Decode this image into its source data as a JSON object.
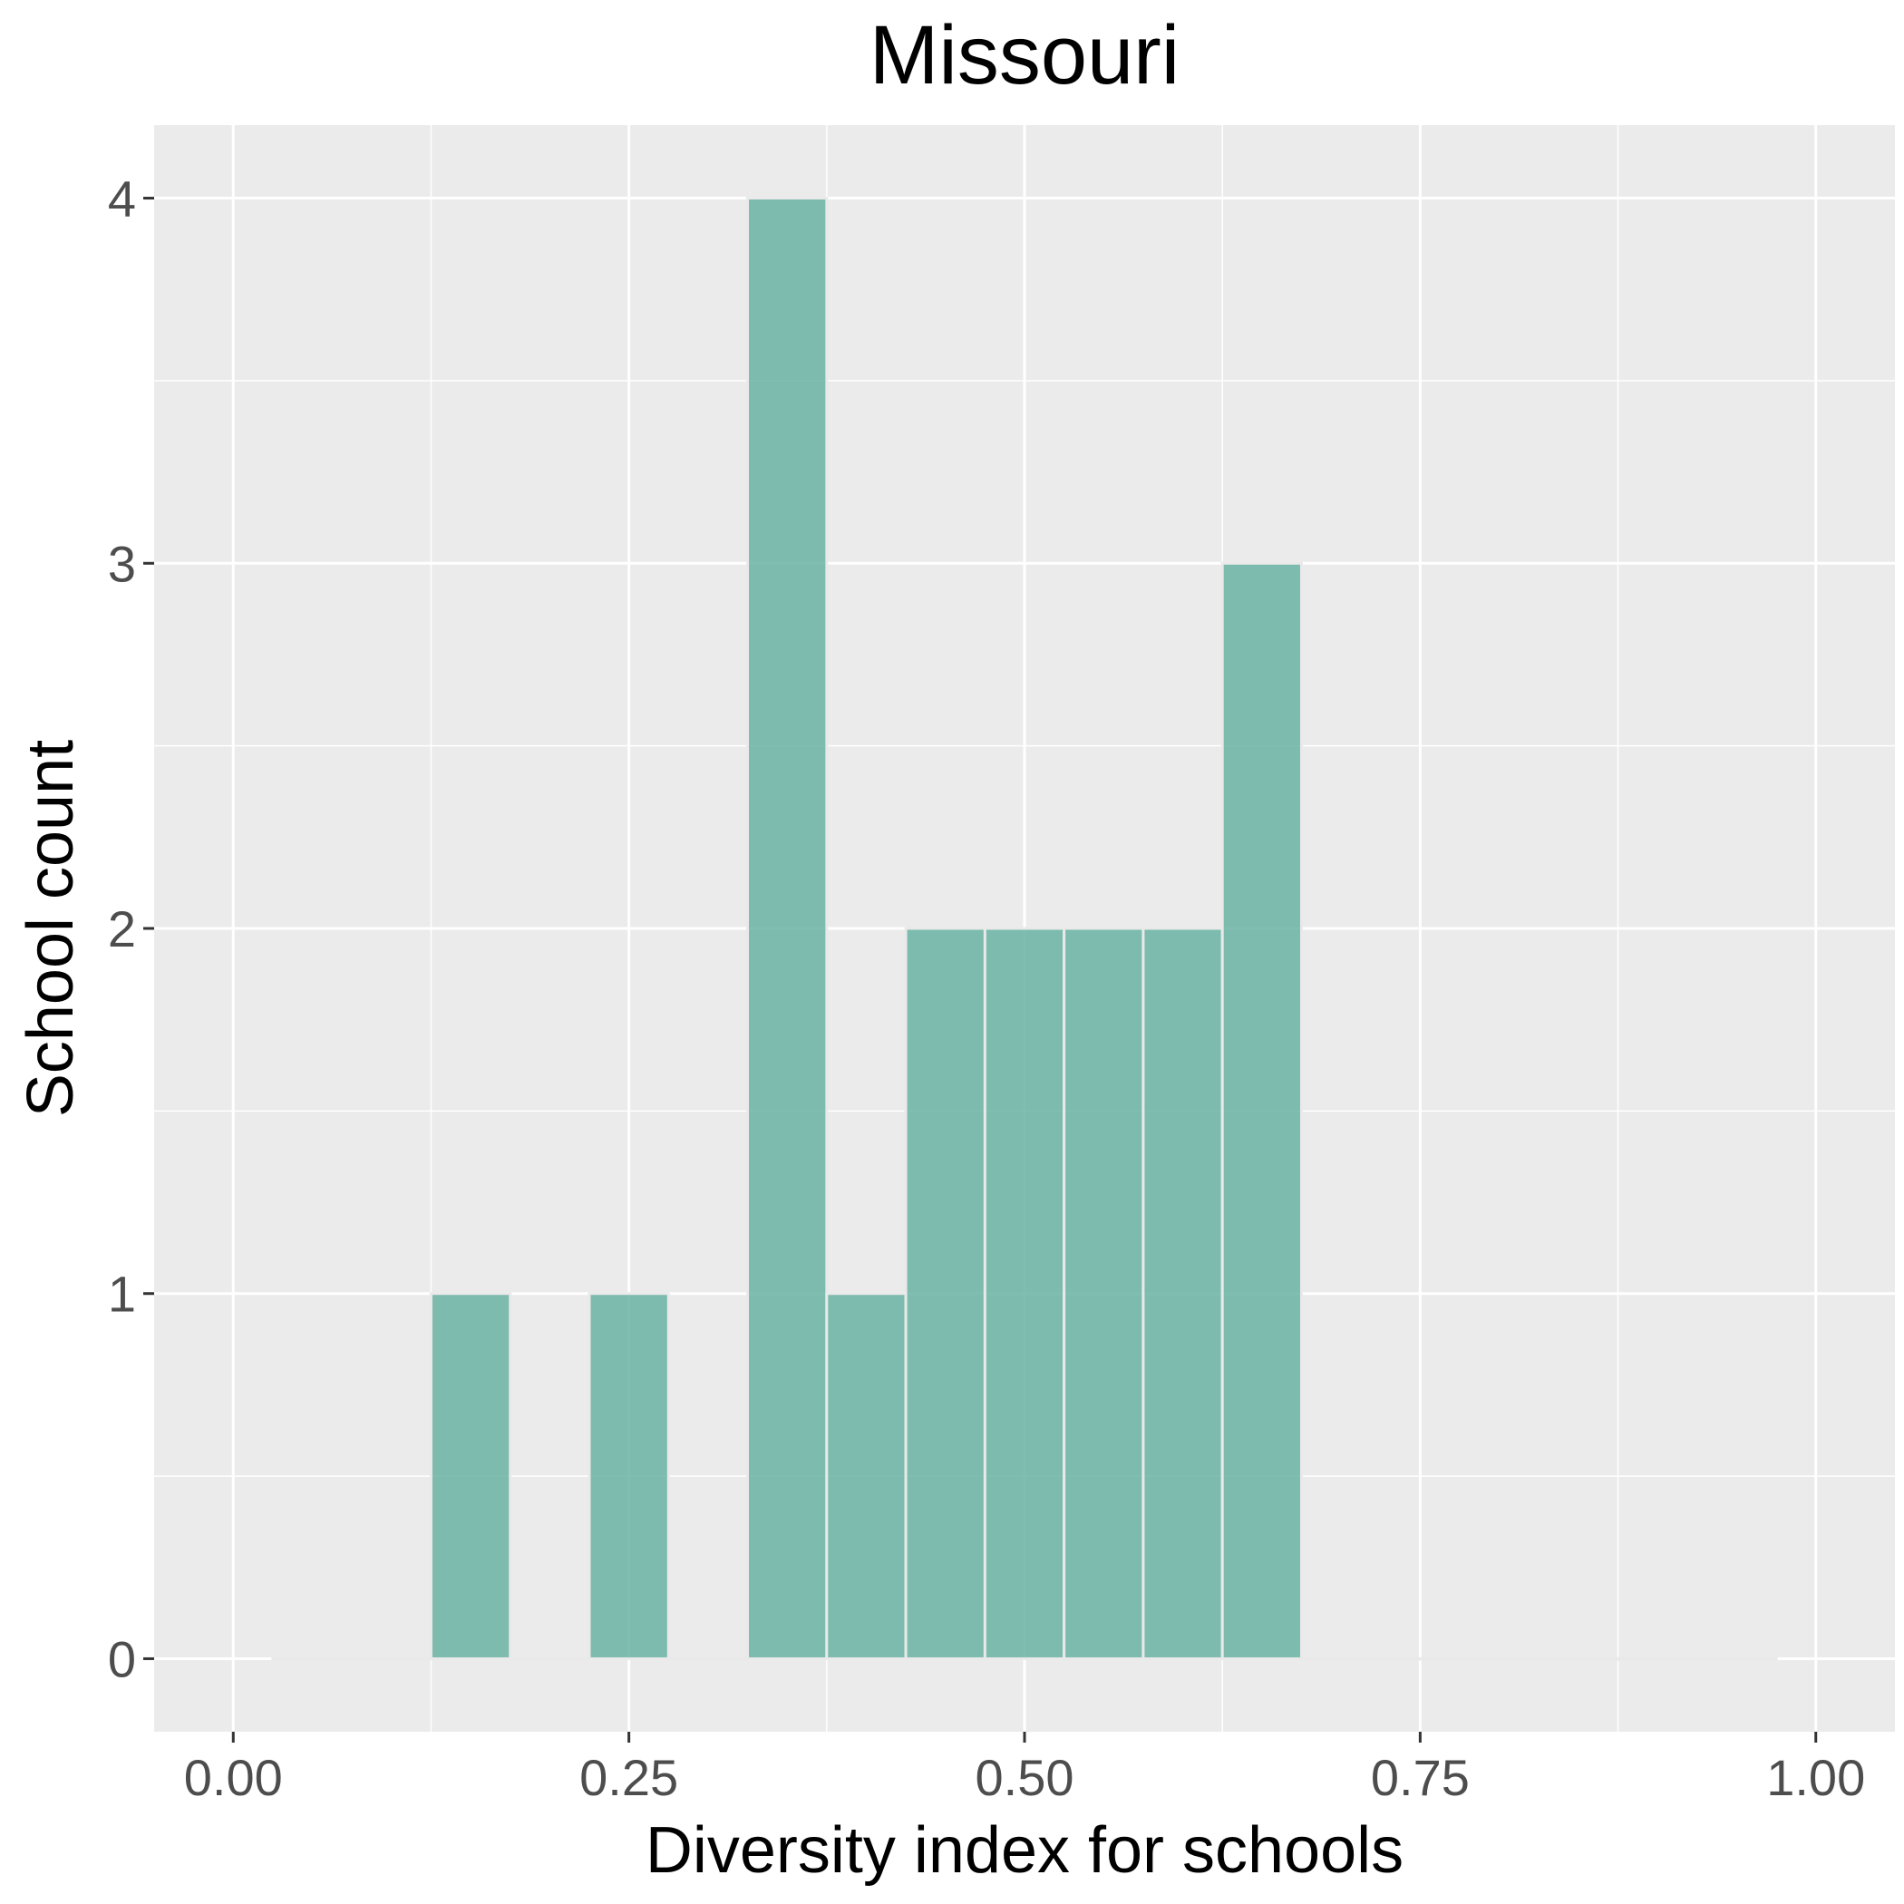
{
  "chart_data": {
    "type": "bar",
    "title": "Missouri",
    "xlabel": "Diversity index for schools",
    "ylabel": "School count",
    "bin_width": 0.05,
    "x_ticks": [
      "0.00",
      "0.25",
      "0.50",
      "0.75",
      "1.00"
    ],
    "y_ticks": [
      "0",
      "1",
      "2",
      "3",
      "4"
    ],
    "xlim": [
      -0.05,
      1.05
    ],
    "ylim": [
      -0.2,
      4.2
    ],
    "grid": true,
    "legend": "none",
    "bins": [
      {
        "x": 0.05,
        "count": 0
      },
      {
        "x": 0.1,
        "count": 0
      },
      {
        "x": 0.15,
        "count": 1
      },
      {
        "x": 0.2,
        "count": 0
      },
      {
        "x": 0.25,
        "count": 1
      },
      {
        "x": 0.3,
        "count": 0
      },
      {
        "x": 0.35,
        "count": 4
      },
      {
        "x": 0.4,
        "count": 1
      },
      {
        "x": 0.45,
        "count": 2
      },
      {
        "x": 0.5,
        "count": 2
      },
      {
        "x": 0.55,
        "count": 2
      },
      {
        "x": 0.6,
        "count": 2
      },
      {
        "x": 0.65,
        "count": 3
      },
      {
        "x": 0.7,
        "count": 0
      },
      {
        "x": 0.75,
        "count": 0
      },
      {
        "x": 0.8,
        "count": 0
      },
      {
        "x": 0.85,
        "count": 0
      },
      {
        "x": 0.9,
        "count": 0
      },
      {
        "x": 0.95,
        "count": 0
      }
    ],
    "colors": {
      "bar_fill": "#69b3a2",
      "bar_stroke": "#e9e9e9",
      "panel": "#ebebeb",
      "grid": "#ffffff"
    }
  }
}
